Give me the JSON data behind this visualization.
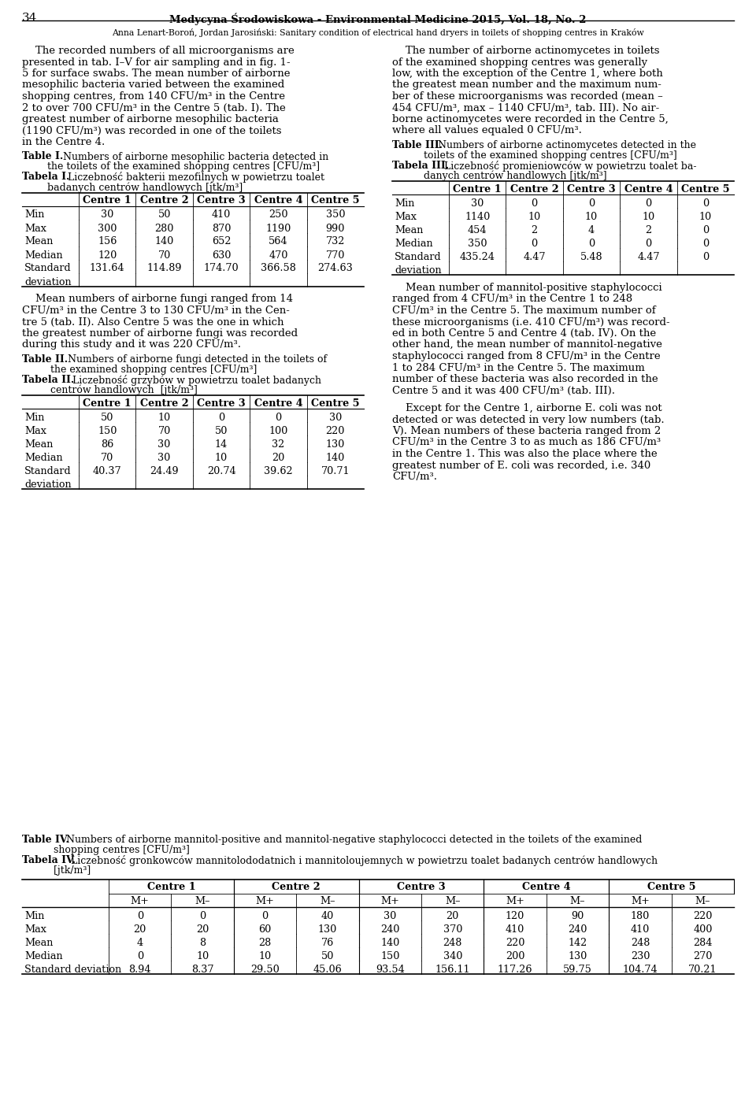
{
  "page_number": "34",
  "journal_title": "Medycyna Środowiskowa - Environmental Medicine 2015, Vol. 18, No. 2",
  "article_subtitle": "Anna Lenart-Boroń, Jordan Jarosiński: Sanitary condition of electrical hand dryers in toilets of shopping centres in Kraków",
  "left_para1": [
    "    The recorded numbers of all microorganisms are",
    "presented in tab. I–V for air sampling and in fig. 1-",
    "5 for surface swabs. The mean number of airborne",
    "mesophilic bacteria varied between the examined",
    "shopping centres, from 140 CFU/m³ in the Centre",
    "2 to over 700 CFU/m³ in the Centre 5 (tab. I). The",
    "greatest number of airborne mesophilic bacteria",
    "(1190 CFU/m³) was recorded in one of the toilets",
    "in the Centre 4."
  ],
  "table1_label_en_bold": "Table I.",
  "table1_label_en_rest": " Numbers of airborne mesophilic bacteria detected in",
  "table1_line2_en": "        the toilets of the examined shopping centres [CFU/m³]",
  "table1_label_pl_bold": "Tabela I.",
  "table1_label_pl_rest": " Liczebność bakterii mezofilnych w powietrzu toalet",
  "table1_line2_pl": "        badanych centrów handlowych [jtk/m³]",
  "table1_cols": [
    "",
    "Centre 1",
    "Centre 2",
    "Centre 3",
    "Centre 4",
    "Centre 5"
  ],
  "table1_rows": [
    [
      "Min",
      "30",
      "50",
      "410",
      "250",
      "350"
    ],
    [
      "Max",
      "300",
      "280",
      "870",
      "1190",
      "990"
    ],
    [
      "Mean",
      "156",
      "140",
      "652",
      "564",
      "732"
    ],
    [
      "Median",
      "120",
      "70",
      "630",
      "470",
      "770"
    ],
    [
      "Standard",
      "131.64",
      "114.89",
      "174.70",
      "366.58",
      "274.63"
    ],
    [
      "deviation",
      "",
      "",
      "",
      "",
      ""
    ]
  ],
  "left_para2": [
    "    Mean numbers of airborne fungi ranged from 14",
    "CFU/m³ in the Centre 3 to 130 CFU/m³ in the Cen-",
    "tre 5 (tab. II). Also Centre 5 was the one in which",
    "the greatest number of airborne fungi was recorded",
    "during this study and it was 220 CFU/m³."
  ],
  "table2_label_en_bold": "Table II.",
  "table2_label_en_rest": " Numbers of airborne fungi detected in the toilets of",
  "table2_line2_en": "         the examined shopping centres [CFU/m³]",
  "table2_label_pl_bold": "Tabela II.",
  "table2_label_pl_rest": " Liczebność grzybów w powietrzu toalet badanych",
  "table2_line2_pl": "         centrów handlowych  [jtk/m³]",
  "table2_cols": [
    "",
    "Centre 1",
    "Centre 2",
    "Centre 3",
    "Centre 4",
    "Centre 5"
  ],
  "table2_rows": [
    [
      "Min",
      "50",
      "10",
      "0",
      "0",
      "30"
    ],
    [
      "Max",
      "150",
      "70",
      "50",
      "100",
      "220"
    ],
    [
      "Mean",
      "86",
      "30",
      "14",
      "32",
      "130"
    ],
    [
      "Median",
      "70",
      "30",
      "10",
      "20",
      "140"
    ],
    [
      "Standard",
      "40.37",
      "24.49",
      "20.74",
      "39.62",
      "70.71"
    ],
    [
      "deviation",
      "",
      "",
      "",
      "",
      ""
    ]
  ],
  "right_para1": [
    "    The number of airborne actinomycetes in toilets",
    "of the examined shopping centres was generally",
    "low, with the exception of the Centre 1, where both",
    "the greatest mean number and the maximum num-",
    "ber of these microorganisms was recorded (mean –",
    "454 CFU/m³, max – 1140 CFU/m³, tab. III). No air-",
    "borne actinomycetes were recorded in the Centre 5,",
    "where all values equaled 0 CFU/m³."
  ],
  "table3_label_en_bold": "Table III.",
  "table3_label_en_rest": "Numbers of airborne actinomycetes detected in the",
  "table3_line2_en": "          toilets of the examined shopping centres [CFU/m³]",
  "table3_label_pl_bold": "Tabela III.",
  "table3_label_pl_rest": "Liczebność promieniowców w powietrzu toalet ba-",
  "table3_line2_pl": "          danych centrów handlowych [jtk/m³]",
  "table3_cols": [
    "",
    "Centre 1",
    "Centre 2",
    "Centre 3",
    "Centre 4",
    "Centre 5"
  ],
  "table3_rows": [
    [
      "Min",
      "30",
      "0",
      "0",
      "0",
      "0"
    ],
    [
      "Max",
      "1140",
      "10",
      "10",
      "10",
      "10"
    ],
    [
      "Mean",
      "454",
      "2",
      "4",
      "2",
      "0"
    ],
    [
      "Median",
      "350",
      "0",
      "0",
      "0",
      "0"
    ],
    [
      "Standard",
      "435.24",
      "4.47",
      "5.48",
      "4.47",
      "0"
    ],
    [
      "deviation",
      "",
      "",
      "",
      "",
      ""
    ]
  ],
  "right_para2": [
    "    Mean number of mannitol-positive staphylococci",
    "ranged from 4 CFU/m³ in the Centre 1 to 248",
    "CFU/m³ in the Centre 5. The maximum number of",
    "these microorganisms (i.e. 410 CFU/m³) was record-",
    "ed in both Centre 5 and Centre 4 (tab. IV). On the",
    "other hand, the mean number of mannitol-negative",
    "staphylococci ranged from 8 CFU/m³ in the Centre",
    "1 to 284 CFU/m³ in the Centre 5. The maximum",
    "number of these bacteria was also recorded in the",
    "Centre 5 and it was 400 CFU/m³ (tab. III)."
  ],
  "right_para3": [
    "    Except for the Centre 1, airborne E. coli was not",
    "detected or was detected in very low numbers (tab.",
    "V). Mean numbers of these bacteria ranged from 2",
    "CFU/m³ in the Centre 3 to as much as 186 CFU/m³",
    "in the Centre 1. This was also the place where the",
    "greatest number of E. coli was recorded, i.e. 340",
    "CFU/m³."
  ],
  "table4_label_en_bold": "Table IV.",
  "table4_label_en_rest": " Numbers of airborne mannitol-positive and mannitol-negative staphylococci detected in the toilets of the examined",
  "table4_line2_en": "          shopping centres [CFU/m³]",
  "table4_label_pl_bold": "Tabela IV.",
  "table4_label_pl_rest": " Liczebność gronkowców mannitolododatnich i mannitoloujemnych w powietrzu toalet badanych centrów handlowych",
  "table4_line2_pl": "          [jtk/m³]",
  "table4_centre_headers": [
    "Centre 1",
    "Centre 2",
    "Centre 3",
    "Centre 4",
    "Centre 5"
  ],
  "table4_sub_headers": [
    "M+",
    "M–",
    "M+",
    "M–",
    "M+",
    "M–",
    "M+",
    "M–",
    "M+",
    "M–"
  ],
  "table4_rows": [
    [
      "Min",
      "0",
      "0",
      "0",
      "40",
      "30",
      "20",
      "120",
      "90",
      "180",
      "220"
    ],
    [
      "Max",
      "20",
      "20",
      "60",
      "130",
      "240",
      "370",
      "410",
      "240",
      "410",
      "400"
    ],
    [
      "Mean",
      "4",
      "8",
      "28",
      "76",
      "140",
      "248",
      "220",
      "142",
      "248",
      "284"
    ],
    [
      "Median",
      "0",
      "10",
      "10",
      "50",
      "150",
      "340",
      "200",
      "130",
      "230",
      "270"
    ],
    [
      "Standard deviation",
      "8.94",
      "8.37",
      "29.50",
      "45.06",
      "93.54",
      "156.11",
      "117.26",
      "59.75",
      "104.74",
      "70.21"
    ]
  ]
}
